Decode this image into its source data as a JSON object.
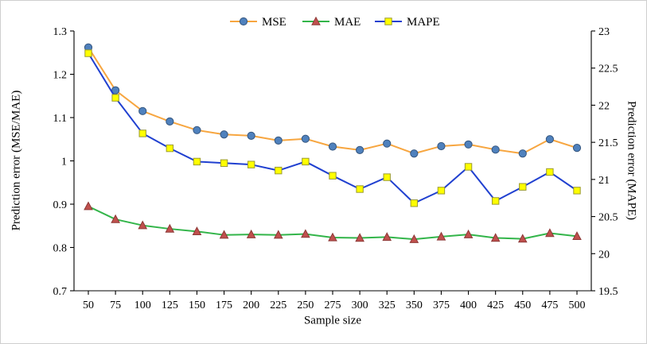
{
  "figure": {
    "xlabel": "Sample size",
    "ylabel_left": "Prediction error (MSE/MAE)",
    "ylabel_right": "Prediction error (MAPE)"
  },
  "chart_data": {
    "type": "line",
    "title": "",
    "xlabel": "Sample size",
    "ylabel_left": "Prediction error (MSE/MAE)",
    "ylabel_right": "Prediction error (MAPE)",
    "grid": false,
    "legend_position": "top-center",
    "x": [
      50,
      75,
      100,
      125,
      150,
      175,
      200,
      225,
      250,
      275,
      300,
      325,
      350,
      375,
      400,
      425,
      450,
      475,
      500
    ],
    "xticks": [
      "50",
      "75",
      "100",
      "125",
      "150",
      "175",
      "200",
      "225",
      "250",
      "275",
      "300",
      "325",
      "350",
      "375",
      "400",
      "425",
      "450",
      "475",
      "500"
    ],
    "xlim": [
      50,
      500
    ],
    "ylim_left": [
      0.7,
      1.3
    ],
    "yticks_left": [
      "0.7",
      "0.8",
      "0.9",
      "1",
      "1.1",
      "1.2",
      "1.3"
    ],
    "ytick_values_left": [
      0.7,
      0.8,
      0.9,
      1.0,
      1.1,
      1.2,
      1.3
    ],
    "ylim_right": [
      19.5,
      23
    ],
    "yticks_right": [
      "19.5",
      "20",
      "20.5",
      "21",
      "21.5",
      "22",
      "22.5",
      "23"
    ],
    "ytick_values_right": [
      19.5,
      20,
      20.5,
      21,
      21.5,
      22,
      22.5,
      23
    ],
    "series": [
      {
        "name": "MSE",
        "axis": "left",
        "line_color": "#F7A640",
        "marker": "circle",
        "marker_fill": "#4F81BD",
        "marker_stroke": "#35567F",
        "values": [
          1.262,
          1.163,
          1.115,
          1.091,
          1.071,
          1.061,
          1.058,
          1.047,
          1.051,
          1.033,
          1.025,
          1.04,
          1.017,
          1.034,
          1.038,
          1.026,
          1.017,
          1.05,
          1.03
        ]
      },
      {
        "name": "MAE",
        "axis": "left",
        "line_color": "#33B54A",
        "marker": "triangle",
        "marker_fill": "#C0504D",
        "marker_stroke": "#8C3836",
        "values": [
          0.895,
          0.865,
          0.851,
          0.843,
          0.837,
          0.829,
          0.83,
          0.829,
          0.831,
          0.823,
          0.822,
          0.824,
          0.819,
          0.825,
          0.83,
          0.822,
          0.82,
          0.833,
          0.826
        ]
      },
      {
        "name": "MAPE",
        "axis": "right",
        "line_color": "#2040D0",
        "marker": "square",
        "marker_fill": "#FFFF00",
        "marker_stroke": "#9A9A30",
        "values": [
          22.7,
          22.1,
          21.62,
          21.42,
          21.24,
          21.22,
          21.2,
          21.12,
          21.24,
          21.05,
          20.87,
          21.03,
          20.68,
          20.85,
          21.17,
          20.71,
          20.9,
          21.1,
          20.85
        ]
      }
    ]
  }
}
